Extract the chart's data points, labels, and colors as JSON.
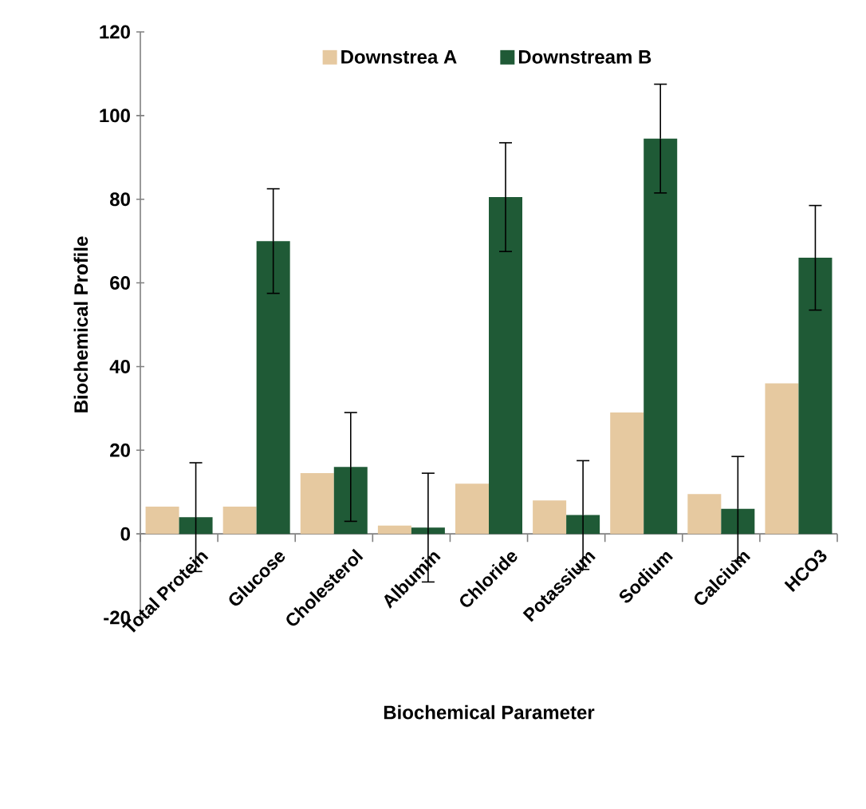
{
  "chart_data": {
    "type": "bar",
    "xlabel": "Biochemical Parameter",
    "ylabel": "Biochemical Profile",
    "categories": [
      "Total Protein",
      "Glucose",
      "Cholesterol",
      "Albumin",
      "Chloride",
      "Potassium",
      "Sodium",
      "Calcium",
      "HCO3"
    ],
    "series": [
      {
        "name": "Downstrea A",
        "color": "#e6c9a0",
        "values": [
          6.5,
          6.5,
          14.5,
          2,
          12,
          8,
          29,
          9.5,
          36
        ]
      },
      {
        "name": "Downstream B",
        "color": "#1f5a36",
        "values": [
          4,
          70,
          16,
          1.5,
          80.5,
          4.5,
          94.5,
          6,
          66
        ],
        "errors": [
          13,
          12.5,
          13,
          13,
          13,
          13,
          13,
          12.5,
          12.5
        ]
      }
    ],
    "ylim": [
      -20,
      120
    ],
    "yticks": [
      -20,
      0,
      20,
      40,
      60,
      80,
      100,
      120
    ],
    "legend": "top",
    "grid": false
  }
}
